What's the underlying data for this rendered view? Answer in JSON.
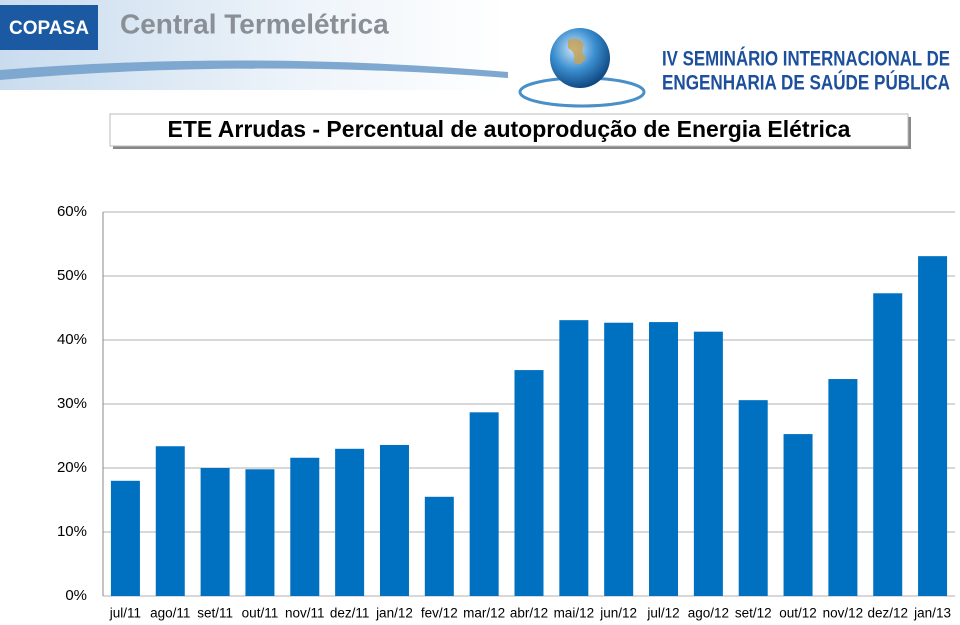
{
  "header": {
    "logo": "COPASA",
    "subtitle": "Central Termelétrica",
    "event_line1": "IV SEMINÁRIO INTERNACIONAL DE",
    "event_line2": "ENGENHARIA DE SAÚDE PÚBLICA"
  },
  "chart_data": {
    "type": "bar",
    "title": "ETE Arrudas - Percentual de autoprodução de Energia Elétrica",
    "categories": [
      "jul/11",
      "ago/11",
      "set/11",
      "out/11",
      "nov/11",
      "dez/11",
      "jan/12",
      "fev/12",
      "mar/12",
      "abr/12",
      "mai/12",
      "jun/12",
      "jul/12",
      "ago/12",
      "set/12",
      "out/12",
      "nov/12",
      "dez/12",
      "jan/13"
    ],
    "values": [
      18.0,
      23.4,
      20.0,
      19.8,
      21.6,
      23.0,
      23.6,
      15.5,
      28.7,
      35.3,
      43.1,
      42.7,
      42.8,
      41.3,
      30.6,
      25.3,
      33.9,
      47.3,
      53.1
    ],
    "color": "#0070c0",
    "ylim": [
      0,
      60
    ],
    "yticks": [
      {
        "value": 0,
        "label": "0%"
      },
      {
        "value": 10,
        "label": "10%"
      },
      {
        "value": 20,
        "label": "20%"
      },
      {
        "value": 30,
        "label": "30%"
      },
      {
        "value": 40,
        "label": "40%"
      },
      {
        "value": 50,
        "label": "50%"
      },
      {
        "value": 60,
        "label": "60%"
      }
    ],
    "grid": true
  }
}
